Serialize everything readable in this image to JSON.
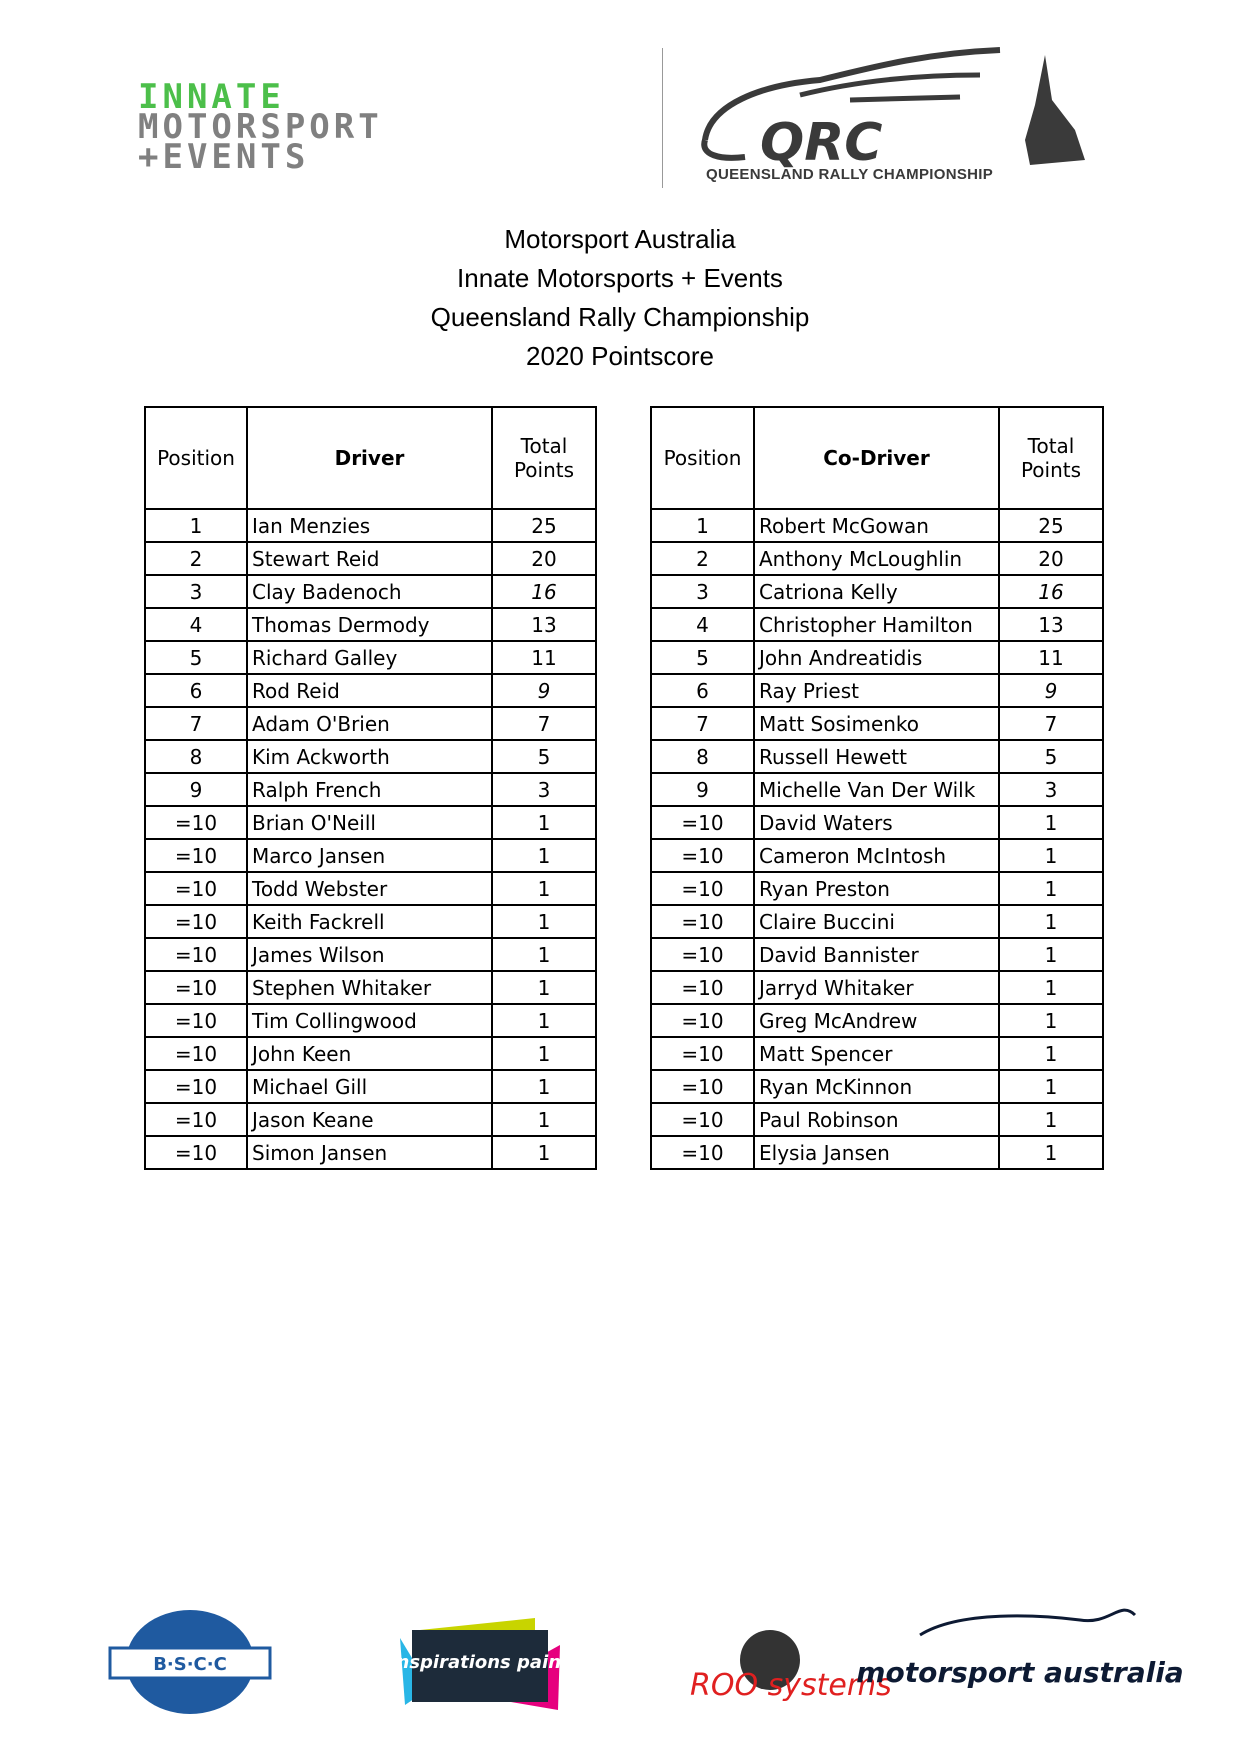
{
  "logos": {
    "innate": [
      "INNATE",
      "MOTORSPORT",
      "+EVENTS"
    ],
    "qrc": {
      "mark": "QRC",
      "subtitle": "QUEENSLAND RALLY CHAMPIONSHIP"
    },
    "sponsors": [
      "B·S·C·C",
      "inspirations paint",
      "ROO systems",
      "motorsport australia"
    ]
  },
  "titles": [
    "Motorsport Australia",
    "Innate Motorsports + Events",
    "Queensland Rally Championship",
    "2020 Pointscore"
  ],
  "driver_table": {
    "headers": [
      "Position",
      "Driver",
      "Total Points"
    ],
    "rows": [
      [
        "1",
        "Ian Menzies",
        "25"
      ],
      [
        "2",
        "Stewart Reid",
        "20"
      ],
      [
        "3",
        "Clay Badenoch",
        "16"
      ],
      [
        "4",
        "Thomas Dermody",
        "13"
      ],
      [
        "5",
        "Richard Galley",
        "11"
      ],
      [
        "6",
        "Rod Reid",
        "9"
      ],
      [
        "7",
        "Adam O'Brien",
        "7"
      ],
      [
        "8",
        "Kim Ackworth",
        "5"
      ],
      [
        "9",
        "Ralph French",
        "3"
      ],
      [
        "=10",
        "Brian O'Neill",
        "1"
      ],
      [
        "=10",
        "Marco Jansen",
        "1"
      ],
      [
        "=10",
        "Todd Webster",
        "1"
      ],
      [
        "=10",
        "Keith Fackrell",
        "1"
      ],
      [
        "=10",
        "James Wilson",
        "1"
      ],
      [
        "=10",
        "Stephen Whitaker",
        "1"
      ],
      [
        "=10",
        "Tim Collingwood",
        "1"
      ],
      [
        "=10",
        "John Keen",
        "1"
      ],
      [
        "=10",
        "Michael Gill",
        "1"
      ],
      [
        "=10",
        "Jason Keane",
        "1"
      ],
      [
        "=10",
        "Simon Jansen",
        "1"
      ]
    ]
  },
  "codriver_table": {
    "headers": [
      "Position",
      "Co-Driver",
      "Total Points"
    ],
    "rows": [
      [
        "1",
        "Robert McGowan",
        "25"
      ],
      [
        "2",
        "Anthony McLoughlin",
        "20"
      ],
      [
        "3",
        "Catriona Kelly",
        "16"
      ],
      [
        "4",
        "Christopher Hamilton",
        "13"
      ],
      [
        "5",
        "John Andreatidis",
        "11"
      ],
      [
        "6",
        "Ray Priest",
        "9"
      ],
      [
        "7",
        "Matt Sosimenko",
        "7"
      ],
      [
        "8",
        "Russell Hewett",
        "5"
      ],
      [
        "9",
        "Michelle Van Der Wilk",
        "3"
      ],
      [
        "=10",
        "David Waters",
        "1"
      ],
      [
        "=10",
        "Cameron McIntosh",
        "1"
      ],
      [
        "=10",
        "Ryan Preston",
        "1"
      ],
      [
        "=10",
        "Claire Buccini",
        "1"
      ],
      [
        "=10",
        "David Bannister",
        "1"
      ],
      [
        "=10",
        "Jarryd Whitaker",
        "1"
      ],
      [
        "=10",
        "Greg McAndrew",
        "1"
      ],
      [
        "=10",
        "Matt Spencer",
        "1"
      ],
      [
        "=10",
        "Ryan McKinnon",
        "1"
      ],
      [
        "=10",
        "Paul Robinson",
        "1"
      ],
      [
        "=10",
        "Elysia Jansen",
        "1"
      ]
    ]
  },
  "colors": {
    "innate_green": "#4cbf4a",
    "innate_grey": "#808080",
    "qrc_dark": "#3a3a3a",
    "bscc_blue": "#1f5aa0",
    "inspirations_dark": "#1d2b3a",
    "inspirations_pink": "#e6007e",
    "inspirations_cyan": "#29b6e6",
    "inspirations_lime": "#c8d400",
    "motorsport_navy": "#0d1a33"
  }
}
